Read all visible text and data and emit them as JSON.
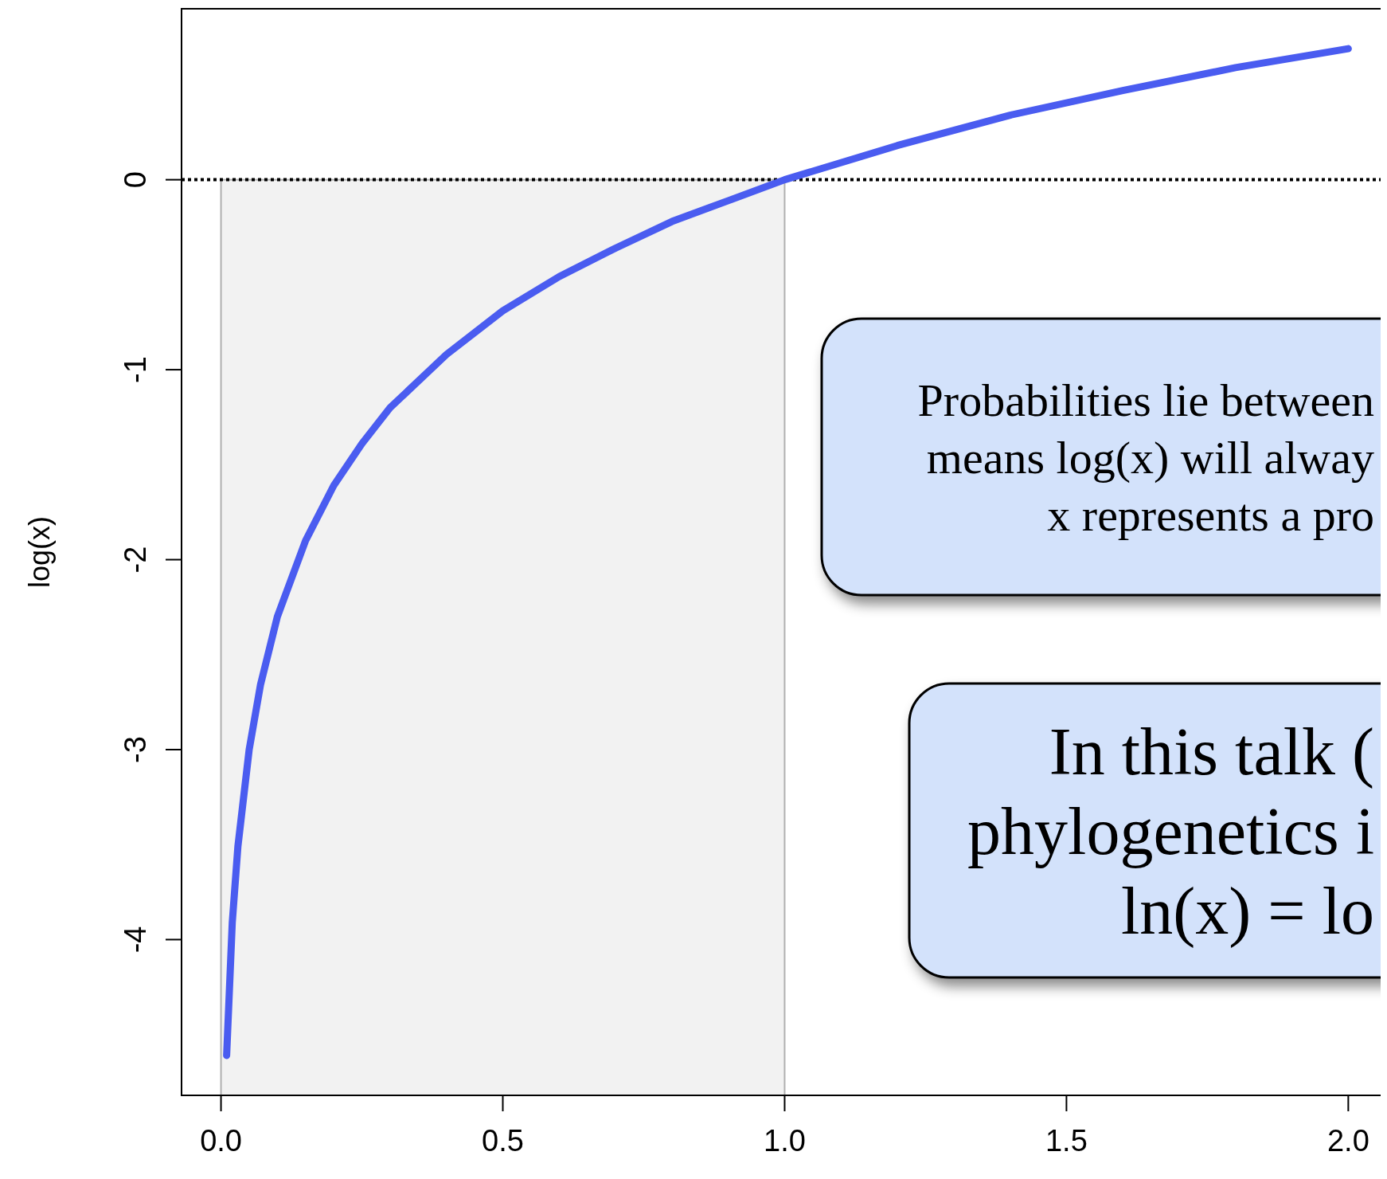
{
  "chart_data": {
    "type": "line",
    "ylabel": "log(x)",
    "x": [
      0.01,
      0.02,
      0.03,
      0.05,
      0.07,
      0.1,
      0.15,
      0.2,
      0.25,
      0.3,
      0.4,
      0.5,
      0.6,
      0.7,
      0.8,
      0.9,
      1.0,
      1.2,
      1.4,
      1.6,
      1.8,
      2.0
    ],
    "series": [
      {
        "color": "#4a5cf0",
        "values": [
          -4.61,
          -3.91,
          -3.51,
          -3.0,
          -2.66,
          -2.3,
          -1.9,
          -1.61,
          -1.39,
          -1.2,
          -0.92,
          -0.69,
          -0.51,
          -0.36,
          -0.22,
          -0.11,
          0,
          0.18,
          0.34,
          0.47,
          0.59,
          0.69
        ]
      }
    ],
    "xlim": [
      -0.07,
      2.08
    ],
    "ylim": [
      -4.82,
      0.9
    ],
    "xticks": [
      {
        "value": 0,
        "label": "0.0"
      },
      {
        "value": 0.5,
        "label": "0.5"
      },
      {
        "value": 1,
        "label": "1.0"
      },
      {
        "value": 1.5,
        "label": "1.5"
      },
      {
        "value": 2,
        "label": "2.0"
      }
    ],
    "yticks": [
      0,
      -1,
      -2,
      -3,
      -4
    ],
    "ref_lines": [
      {
        "axis": "y",
        "value": 0,
        "color": "#000000",
        "line_style": "dotted"
      }
    ],
    "bands": [
      {
        "axis": "x",
        "from": 0,
        "to": 1,
        "color": "#f2f2f2"
      }
    ],
    "annotations": [
      "Probabilities lie between\nmeans log(x) will alway\nx represents a pro",
      "In this talk (\nphylogenetics i\nln(x) = lo"
    ],
    "line_style": "solid"
  }
}
